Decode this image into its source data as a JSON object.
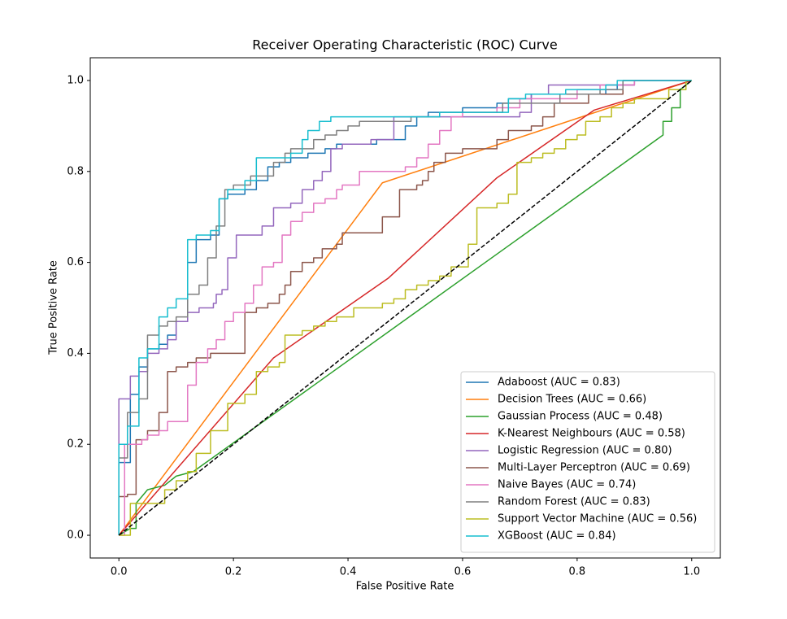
{
  "chart_data": {
    "type": "line",
    "title": "Receiver Operating Characteristic (ROC) Curve",
    "x_label": "False Positive Rate",
    "y_label": "True Positive Rate",
    "xlim": [
      -0.05,
      1.05
    ],
    "ylim": [
      -0.05,
      1.05
    ],
    "xticks": [
      {
        "value": 0,
        "label": "0.0"
      },
      0.2,
      0.4,
      0.6,
      0.8,
      {
        "value": 1,
        "label": "1.0"
      }
    ],
    "yticks": [
      {
        "value": 0,
        "label": "0.0"
      },
      0.2,
      0.4,
      0.6,
      0.8,
      {
        "value": 1,
        "label": "1.0"
      }
    ],
    "legend": "lower right",
    "series": [
      {
        "name": "Adaboost (AUC = 0.83)",
        "color": "#1f77b4",
        "x": [
          0,
          0,
          0.02,
          0.02,
          0.035,
          0.035,
          0.05,
          0.05,
          0.07,
          0.07,
          0.085,
          0.085,
          0.1,
          0.1,
          0.12,
          0.12,
          0.135,
          0.135,
          0.16,
          0.16,
          0.175,
          0.175,
          0.19,
          0.19,
          0.22,
          0.22,
          0.24,
          0.24,
          0.26,
          0.26,
          0.28,
          0.28,
          0.3,
          0.3,
          0.33,
          0.33,
          0.36,
          0.36,
          0.38,
          0.38,
          0.45,
          0.45,
          0.5,
          0.5,
          0.52,
          0.52,
          0.54,
          0.54,
          0.6,
          0.6,
          0.66,
          0.66,
          0.68,
          0.68,
          0.72,
          0.72,
          0.85,
          0.85,
          0.87,
          0.87,
          0.9,
          0.9,
          1
        ],
        "values": [
          0,
          0.16,
          0.16,
          0.31,
          0.31,
          0.37,
          0.37,
          0.41,
          0.41,
          0.42,
          0.42,
          0.44,
          0.44,
          0.47,
          0.47,
          0.6,
          0.6,
          0.65,
          0.65,
          0.66,
          0.66,
          0.74,
          0.74,
          0.75,
          0.75,
          0.76,
          0.76,
          0.78,
          0.78,
          0.81,
          0.81,
          0.82,
          0.82,
          0.83,
          0.83,
          0.84,
          0.84,
          0.85,
          0.85,
          0.86,
          0.86,
          0.87,
          0.87,
          0.9,
          0.9,
          0.92,
          0.92,
          0.93,
          0.93,
          0.94,
          0.94,
          0.95,
          0.95,
          0.96,
          0.96,
          0.97,
          0.97,
          0.98,
          0.98,
          0.99,
          0.99,
          1,
          1
        ]
      },
      {
        "name": "Decision Trees (AUC = 0.66)",
        "color": "#ff7f0e",
        "x": [
          0,
          0.46,
          1
        ],
        "values": [
          0,
          0.775,
          1
        ]
      },
      {
        "name": "Gaussian Process (AUC = 0.48)",
        "color": "#2ca02c",
        "x": [
          0,
          0.02,
          0.03,
          0.03,
          0.05,
          0.08,
          0.1,
          0.13,
          0.95,
          0.95,
          0.965,
          0.965,
          0.98,
          0.98,
          1
        ],
        "values": [
          0,
          0.015,
          0.015,
          0.07,
          0.1,
          0.11,
          0.13,
          0.14,
          0.88,
          0.91,
          0.91,
          0.94,
          0.94,
          0.98,
          1
        ]
      },
      {
        "name": "K-Nearest Neighbours (AUC = 0.58)",
        "color": "#d62728",
        "x": [
          0,
          0.27,
          0.47,
          0.66,
          0.83,
          1
        ],
        "values": [
          0,
          0.39,
          0.565,
          0.786,
          0.935,
          1
        ]
      },
      {
        "name": "Logistic Regression (AUC = 0.80)",
        "color": "#9467bd",
        "x": [
          0,
          0,
          0.02,
          0.02,
          0.035,
          0.035,
          0.05,
          0.05,
          0.07,
          0.07,
          0.085,
          0.085,
          0.1,
          0.1,
          0.12,
          0.12,
          0.14,
          0.14,
          0.165,
          0.165,
          0.17,
          0.17,
          0.18,
          0.18,
          0.19,
          0.19,
          0.205,
          0.205,
          0.25,
          0.25,
          0.27,
          0.27,
          0.3,
          0.3,
          0.32,
          0.32,
          0.34,
          0.34,
          0.355,
          0.355,
          0.37,
          0.37,
          0.39,
          0.39,
          0.44,
          0.44,
          0.48,
          0.48,
          0.7,
          0.7,
          0.72,
          0.72,
          0.75,
          0.75,
          0.9,
          0.9,
          1
        ],
        "values": [
          0,
          0.3,
          0.3,
          0.35,
          0.35,
          0.36,
          0.36,
          0.4,
          0.4,
          0.41,
          0.41,
          0.43,
          0.43,
          0.47,
          0.47,
          0.49,
          0.49,
          0.5,
          0.5,
          0.51,
          0.51,
          0.53,
          0.53,
          0.54,
          0.54,
          0.61,
          0.61,
          0.66,
          0.66,
          0.68,
          0.68,
          0.72,
          0.72,
          0.73,
          0.73,
          0.76,
          0.76,
          0.78,
          0.78,
          0.8,
          0.8,
          0.85,
          0.85,
          0.86,
          0.86,
          0.87,
          0.87,
          0.92,
          0.92,
          0.93,
          0.93,
          0.97,
          0.97,
          0.99,
          0.99,
          1,
          1
        ]
      },
      {
        "name": "Multi-Layer Perceptron (AUC = 0.69)",
        "color": "#8c564b",
        "x": [
          0,
          0,
          0.015,
          0.015,
          0.03,
          0.03,
          0.05,
          0.05,
          0.07,
          0.07,
          0.085,
          0.085,
          0.1,
          0.1,
          0.12,
          0.12,
          0.135,
          0.135,
          0.16,
          0.16,
          0.22,
          0.22,
          0.24,
          0.24,
          0.26,
          0.26,
          0.28,
          0.28,
          0.29,
          0.29,
          0.3,
          0.3,
          0.32,
          0.32,
          0.34,
          0.34,
          0.355,
          0.355,
          0.38,
          0.38,
          0.39,
          0.39,
          0.46,
          0.46,
          0.49,
          0.49,
          0.52,
          0.52,
          0.53,
          0.53,
          0.54,
          0.54,
          0.55,
          0.55,
          0.57,
          0.57,
          0.6,
          0.6,
          0.66,
          0.66,
          0.68,
          0.68,
          0.72,
          0.72,
          0.74,
          0.74,
          0.76,
          0.76,
          0.82,
          0.82,
          0.88,
          0.88,
          1
        ],
        "values": [
          0,
          0.085,
          0.085,
          0.09,
          0.09,
          0.21,
          0.21,
          0.23,
          0.23,
          0.27,
          0.27,
          0.36,
          0.36,
          0.37,
          0.37,
          0.38,
          0.38,
          0.39,
          0.39,
          0.4,
          0.4,
          0.49,
          0.49,
          0.5,
          0.5,
          0.51,
          0.51,
          0.53,
          0.53,
          0.55,
          0.55,
          0.58,
          0.58,
          0.6,
          0.6,
          0.61,
          0.61,
          0.63,
          0.63,
          0.64,
          0.64,
          0.665,
          0.665,
          0.7,
          0.7,
          0.76,
          0.76,
          0.77,
          0.77,
          0.78,
          0.78,
          0.8,
          0.8,
          0.82,
          0.82,
          0.84,
          0.84,
          0.85,
          0.85,
          0.87,
          0.87,
          0.89,
          0.89,
          0.9,
          0.9,
          0.92,
          0.92,
          0.95,
          0.95,
          0.97,
          0.97,
          1,
          1
        ]
      },
      {
        "name": "Naive Bayes (AUC = 0.74)",
        "color": "#e377c2",
        "x": [
          0,
          0.01,
          0.01,
          0.04,
          0.04,
          0.05,
          0.05,
          0.07,
          0.07,
          0.085,
          0.085,
          0.12,
          0.12,
          0.135,
          0.135,
          0.155,
          0.155,
          0.17,
          0.17,
          0.185,
          0.185,
          0.2,
          0.2,
          0.22,
          0.22,
          0.235,
          0.235,
          0.25,
          0.25,
          0.27,
          0.27,
          0.285,
          0.285,
          0.3,
          0.3,
          0.32,
          0.32,
          0.34,
          0.34,
          0.36,
          0.36,
          0.38,
          0.38,
          0.39,
          0.39,
          0.42,
          0.42,
          0.5,
          0.5,
          0.52,
          0.52,
          0.54,
          0.54,
          0.56,
          0.56,
          0.58,
          0.58,
          0.6,
          0.6,
          0.66,
          0.66,
          0.7,
          0.7,
          0.8,
          0.8,
          0.84,
          0.84,
          0.9,
          0.9,
          1
        ],
        "values": [
          0,
          0,
          0.2,
          0.2,
          0.21,
          0.21,
          0.22,
          0.22,
          0.23,
          0.23,
          0.25,
          0.25,
          0.33,
          0.33,
          0.38,
          0.38,
          0.41,
          0.41,
          0.43,
          0.43,
          0.47,
          0.47,
          0.49,
          0.49,
          0.51,
          0.51,
          0.55,
          0.55,
          0.59,
          0.59,
          0.6,
          0.6,
          0.66,
          0.66,
          0.69,
          0.69,
          0.71,
          0.71,
          0.73,
          0.73,
          0.74,
          0.74,
          0.76,
          0.76,
          0.77,
          0.77,
          0.8,
          0.8,
          0.81,
          0.81,
          0.83,
          0.83,
          0.86,
          0.86,
          0.89,
          0.89,
          0.92,
          0.92,
          0.93,
          0.93,
          0.94,
          0.94,
          0.96,
          0.96,
          0.98,
          0.98,
          0.99,
          0.99,
          1,
          1
        ]
      },
      {
        "name": "Random Forest (AUC = 0.83)",
        "color": "#7f7f7f",
        "x": [
          0,
          0,
          0.015,
          0.015,
          0.035,
          0.035,
          0.05,
          0.05,
          0.07,
          0.07,
          0.085,
          0.085,
          0.1,
          0.1,
          0.12,
          0.12,
          0.14,
          0.14,
          0.155,
          0.155,
          0.17,
          0.17,
          0.185,
          0.185,
          0.2,
          0.2,
          0.23,
          0.23,
          0.27,
          0.27,
          0.29,
          0.29,
          0.3,
          0.3,
          0.34,
          0.34,
          0.36,
          0.36,
          0.38,
          0.38,
          0.4,
          0.4,
          0.42,
          0.42,
          0.51,
          0.51,
          0.56,
          0.56,
          0.67,
          0.67,
          0.77,
          0.77,
          0.84,
          0.84,
          0.88,
          0.88,
          1
        ],
        "values": [
          0,
          0.17,
          0.17,
          0.27,
          0.27,
          0.3,
          0.3,
          0.44,
          0.44,
          0.46,
          0.46,
          0.47,
          0.47,
          0.48,
          0.48,
          0.53,
          0.53,
          0.55,
          0.55,
          0.61,
          0.61,
          0.68,
          0.68,
          0.76,
          0.76,
          0.77,
          0.77,
          0.79,
          0.79,
          0.82,
          0.82,
          0.84,
          0.84,
          0.85,
          0.85,
          0.87,
          0.87,
          0.88,
          0.88,
          0.89,
          0.89,
          0.9,
          0.9,
          0.91,
          0.91,
          0.92,
          0.92,
          0.93,
          0.93,
          0.95,
          0.95,
          0.97,
          0.97,
          0.98,
          0.98,
          1,
          1
        ]
      },
      {
        "name": "Support Vector Machine (AUC = 0.56)",
        "color": "#bcbd22",
        "x": [
          0,
          0.02,
          0.02,
          0.08,
          0.08,
          0.1,
          0.1,
          0.12,
          0.12,
          0.135,
          0.135,
          0.16,
          0.16,
          0.19,
          0.19,
          0.22,
          0.22,
          0.24,
          0.24,
          0.26,
          0.26,
          0.28,
          0.28,
          0.29,
          0.29,
          0.32,
          0.32,
          0.34,
          0.34,
          0.36,
          0.36,
          0.38,
          0.38,
          0.41,
          0.41,
          0.46,
          0.46,
          0.48,
          0.48,
          0.5,
          0.5,
          0.52,
          0.52,
          0.54,
          0.54,
          0.56,
          0.56,
          0.58,
          0.58,
          0.61,
          0.61,
          0.625,
          0.625,
          0.66,
          0.66,
          0.68,
          0.68,
          0.695,
          0.695,
          0.72,
          0.72,
          0.74,
          0.74,
          0.76,
          0.76,
          0.78,
          0.78,
          0.8,
          0.8,
          0.815,
          0.815,
          0.84,
          0.84,
          0.86,
          0.86,
          0.88,
          0.88,
          0.9,
          0.9,
          0.96,
          0.96,
          0.99,
          0.99,
          1
        ],
        "values": [
          0,
          0,
          0.07,
          0.07,
          0.1,
          0.1,
          0.12,
          0.12,
          0.14,
          0.14,
          0.18,
          0.18,
          0.23,
          0.23,
          0.29,
          0.29,
          0.31,
          0.31,
          0.36,
          0.36,
          0.37,
          0.37,
          0.38,
          0.38,
          0.44,
          0.44,
          0.45,
          0.45,
          0.46,
          0.46,
          0.47,
          0.47,
          0.48,
          0.48,
          0.5,
          0.5,
          0.51,
          0.51,
          0.52,
          0.52,
          0.54,
          0.54,
          0.55,
          0.55,
          0.56,
          0.56,
          0.57,
          0.57,
          0.59,
          0.59,
          0.64,
          0.64,
          0.72,
          0.72,
          0.73,
          0.73,
          0.75,
          0.75,
          0.82,
          0.82,
          0.83,
          0.83,
          0.84,
          0.84,
          0.85,
          0.85,
          0.87,
          0.87,
          0.88,
          0.88,
          0.91,
          0.91,
          0.92,
          0.92,
          0.94,
          0.94,
          0.95,
          0.95,
          0.96,
          0.96,
          0.98,
          0.98,
          1,
          1
        ]
      },
      {
        "name": "XGBoost (AUC = 0.84)",
        "color": "#17becf",
        "x": [
          0,
          0,
          0.015,
          0.015,
          0.035,
          0.035,
          0.05,
          0.05,
          0.07,
          0.07,
          0.085,
          0.085,
          0.1,
          0.1,
          0.12,
          0.12,
          0.135,
          0.135,
          0.16,
          0.16,
          0.175,
          0.175,
          0.19,
          0.19,
          0.22,
          0.22,
          0.24,
          0.24,
          0.3,
          0.3,
          0.32,
          0.32,
          0.33,
          0.33,
          0.35,
          0.35,
          0.37,
          0.37,
          0.56,
          0.56,
          0.68,
          0.68,
          0.71,
          0.71,
          0.78,
          0.78,
          0.85,
          0.85,
          0.87,
          0.87,
          1
        ],
        "values": [
          0,
          0.2,
          0.2,
          0.24,
          0.24,
          0.39,
          0.39,
          0.41,
          0.41,
          0.48,
          0.48,
          0.5,
          0.5,
          0.52,
          0.52,
          0.65,
          0.65,
          0.66,
          0.66,
          0.67,
          0.67,
          0.74,
          0.74,
          0.76,
          0.76,
          0.78,
          0.78,
          0.83,
          0.83,
          0.84,
          0.84,
          0.87,
          0.87,
          0.89,
          0.89,
          0.91,
          0.91,
          0.92,
          0.92,
          0.93,
          0.93,
          0.96,
          0.96,
          0.97,
          0.97,
          0.98,
          0.98,
          0.99,
          0.99,
          1,
          1
        ]
      }
    ],
    "reference_line": {
      "x": [
        0,
        1
      ],
      "values": [
        0,
        1
      ],
      "color": "#000000",
      "dashed": true
    }
  }
}
